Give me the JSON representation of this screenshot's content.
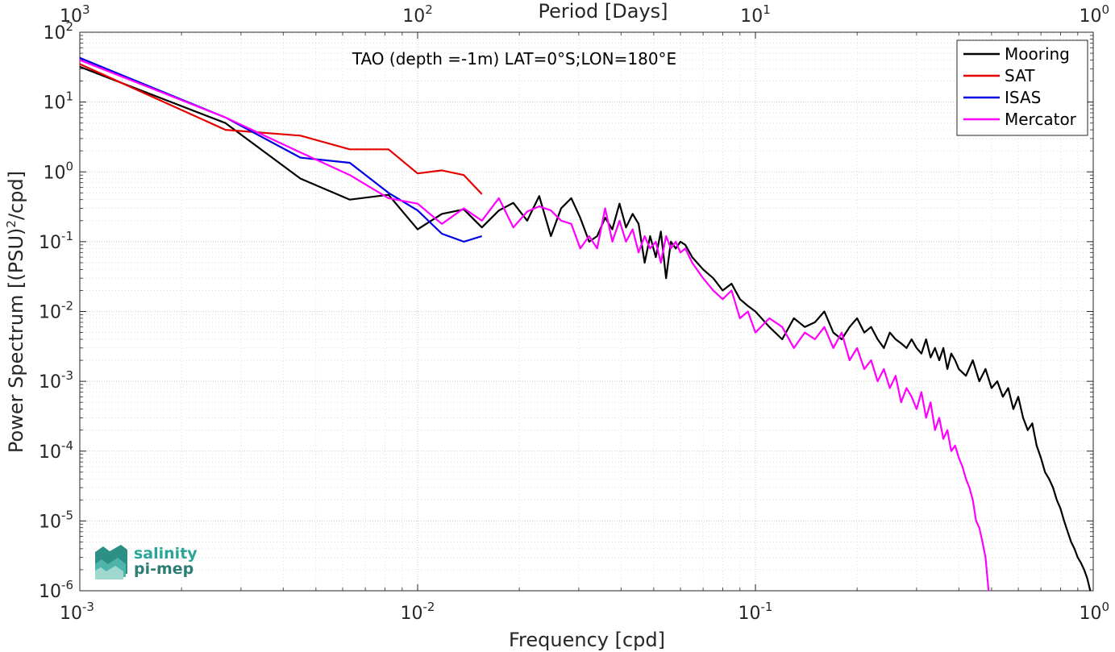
{
  "chart_data": {
    "type": "line",
    "title": "TAO (depth =-1m) LAT=0°S;LON=180°E",
    "xlabel": "Frequency [cpd]",
    "ylabel_main": "Power Spectrum [(PSU)",
    "ylabel_sup": "2",
    "ylabel_tail": "/cpd]",
    "top_xlabel": "Period [Days]",
    "xscale": "log",
    "yscale": "log",
    "xlim": [
      0.001,
      1
    ],
    "ylim": [
      1e-06,
      100
    ],
    "grid": true,
    "legend_position": "top-right",
    "x_ticks": [
      {
        "value": 0.001,
        "base": "10",
        "exp": "-3"
      },
      {
        "value": 0.01,
        "base": "10",
        "exp": "-2"
      },
      {
        "value": 0.1,
        "base": "10",
        "exp": "-1"
      },
      {
        "value": 1,
        "base": "10",
        "exp": "0"
      }
    ],
    "top_ticks": [
      {
        "value": 0.001,
        "base": "10",
        "exp": "3"
      },
      {
        "value": 0.01,
        "base": "10",
        "exp": "2"
      },
      {
        "value": 0.1,
        "base": "10",
        "exp": "1"
      },
      {
        "value": 1,
        "base": "10",
        "exp": "0"
      }
    ],
    "y_ticks": [
      {
        "value": 100,
        "base": "10",
        "exp": "2"
      },
      {
        "value": 10,
        "base": "10",
        "exp": "1"
      },
      {
        "value": 1,
        "base": "10",
        "exp": "0"
      },
      {
        "value": 0.1,
        "base": "10",
        "exp": "-1"
      },
      {
        "value": 0.01,
        "base": "10",
        "exp": "-2"
      },
      {
        "value": 0.001,
        "base": "10",
        "exp": "-3"
      },
      {
        "value": 0.0001,
        "base": "10",
        "exp": "-4"
      },
      {
        "value": 1e-05,
        "base": "10",
        "exp": "-5"
      },
      {
        "value": 1e-06,
        "base": "10",
        "exp": "-6"
      }
    ],
    "series": [
      {
        "name": "Mooring",
        "color": "#000000",
        "x": [
          0.001,
          0.0027,
          0.0045,
          0.0063,
          0.0082,
          0.01,
          0.0118,
          0.0137,
          0.0155,
          0.0174,
          0.0192,
          0.0211,
          0.0229,
          0.0248,
          0.0266,
          0.0285,
          0.0303,
          0.0322,
          0.034,
          0.0359,
          0.0377,
          0.0396,
          0.0414,
          0.0433,
          0.0451,
          0.047,
          0.0488,
          0.0507,
          0.0525,
          0.0544,
          0.0562,
          0.0581,
          0.06,
          0.062,
          0.065,
          0.07,
          0.075,
          0.08,
          0.085,
          0.09,
          0.095,
          0.1,
          0.11,
          0.12,
          0.13,
          0.14,
          0.15,
          0.16,
          0.17,
          0.18,
          0.19,
          0.2,
          0.21,
          0.22,
          0.23,
          0.24,
          0.25,
          0.26,
          0.27,
          0.28,
          0.29,
          0.3,
          0.31,
          0.32,
          0.33,
          0.34,
          0.35,
          0.36,
          0.37,
          0.38,
          0.39,
          0.4,
          0.42,
          0.44,
          0.46,
          0.48,
          0.5,
          0.52,
          0.54,
          0.56,
          0.58,
          0.6,
          0.62,
          0.64,
          0.66,
          0.68,
          0.7,
          0.72,
          0.74,
          0.76,
          0.78,
          0.8,
          0.82,
          0.84,
          0.86,
          0.88,
          0.9,
          0.92,
          0.94,
          0.96,
          0.98
        ],
        "y": [
          32,
          5,
          0.8,
          0.4,
          0.47,
          0.15,
          0.25,
          0.29,
          0.16,
          0.28,
          0.36,
          0.2,
          0.45,
          0.12,
          0.3,
          0.42,
          0.22,
          0.1,
          0.12,
          0.22,
          0.15,
          0.35,
          0.16,
          0.25,
          0.18,
          0.05,
          0.12,
          0.06,
          0.14,
          0.03,
          0.1,
          0.08,
          0.1,
          0.09,
          0.06,
          0.04,
          0.03,
          0.02,
          0.025,
          0.015,
          0.012,
          0.01,
          0.006,
          0.004,
          0.008,
          0.006,
          0.007,
          0.01,
          0.005,
          0.004,
          0.006,
          0.008,
          0.005,
          0.006,
          0.004,
          0.003,
          0.005,
          0.004,
          0.0035,
          0.003,
          0.004,
          0.003,
          0.0025,
          0.004,
          0.0022,
          0.003,
          0.002,
          0.003,
          0.0015,
          0.0025,
          0.002,
          0.0015,
          0.0012,
          0.002,
          0.001,
          0.0015,
          0.0008,
          0.001,
          0.0006,
          0.0008,
          0.0004,
          0.0006,
          0.0003,
          0.0002,
          0.00025,
          0.00012,
          8e-05,
          5e-05,
          4e-05,
          3e-05,
          2e-05,
          1.5e-05,
          1e-05,
          7e-06,
          5e-06,
          4e-06,
          3e-06,
          2.5e-06,
          2e-06,
          1.5e-06,
          1e-06
        ]
      },
      {
        "name": "SAT",
        "color": "#e60000",
        "x": [
          0.001,
          0.0027,
          0.0045,
          0.0063,
          0.0082,
          0.01,
          0.0118,
          0.0137,
          0.0155
        ],
        "y": [
          35,
          4,
          3.3,
          2.1,
          2.1,
          0.95,
          1.05,
          0.9,
          0.48
        ]
      },
      {
        "name": "ISAS",
        "color": "#0000e6",
        "x": [
          0.001,
          0.0027,
          0.0045,
          0.0063,
          0.0082,
          0.01,
          0.0118,
          0.0137,
          0.0155
        ],
        "y": [
          43,
          6,
          1.6,
          1.35,
          0.5,
          0.28,
          0.13,
          0.1,
          0.12
        ]
      },
      {
        "name": "Mercator",
        "color": "#ff00ff",
        "x": [
          0.001,
          0.0027,
          0.0045,
          0.0063,
          0.0082,
          0.01,
          0.0118,
          0.0137,
          0.0155,
          0.0174,
          0.0192,
          0.0211,
          0.0229,
          0.0248,
          0.0266,
          0.0285,
          0.0303,
          0.0322,
          0.034,
          0.0359,
          0.0377,
          0.0396,
          0.0414,
          0.0433,
          0.0451,
          0.047,
          0.0488,
          0.0507,
          0.0525,
          0.0544,
          0.0562,
          0.0581,
          0.06,
          0.062,
          0.065,
          0.07,
          0.075,
          0.08,
          0.085,
          0.09,
          0.095,
          0.1,
          0.11,
          0.12,
          0.13,
          0.14,
          0.15,
          0.16,
          0.17,
          0.18,
          0.19,
          0.2,
          0.21,
          0.22,
          0.23,
          0.24,
          0.25,
          0.26,
          0.27,
          0.28,
          0.29,
          0.3,
          0.31,
          0.32,
          0.33,
          0.34,
          0.35,
          0.36,
          0.37,
          0.38,
          0.39,
          0.4,
          0.41,
          0.42,
          0.43,
          0.44,
          0.45,
          0.46,
          0.47,
          0.48,
          0.49
        ],
        "y": [
          40,
          6,
          1.9,
          0.9,
          0.42,
          0.35,
          0.18,
          0.3,
          0.2,
          0.42,
          0.16,
          0.27,
          0.32,
          0.28,
          0.2,
          0.18,
          0.08,
          0.12,
          0.08,
          0.3,
          0.1,
          0.2,
          0.1,
          0.15,
          0.07,
          0.12,
          0.08,
          0.1,
          0.05,
          0.12,
          0.08,
          0.1,
          0.07,
          0.08,
          0.05,
          0.03,
          0.02,
          0.015,
          0.02,
          0.008,
          0.01,
          0.005,
          0.008,
          0.006,
          0.003,
          0.005,
          0.004,
          0.006,
          0.003,
          0.005,
          0.002,
          0.003,
          0.0015,
          0.002,
          0.001,
          0.0015,
          0.0008,
          0.0012,
          0.0005,
          0.0008,
          0.0006,
          0.0004,
          0.0007,
          0.0003,
          0.0005,
          0.0002,
          0.0003,
          0.00015,
          0.0002,
          0.0001,
          0.00012,
          8e-05,
          6e-05,
          4e-05,
          3e-05,
          2e-05,
          1e-05,
          8e-06,
          5e-06,
          3e-06,
          1e-06
        ]
      }
    ]
  },
  "logo": {
    "line1": "salinity",
    "line2": "pi-mep"
  }
}
